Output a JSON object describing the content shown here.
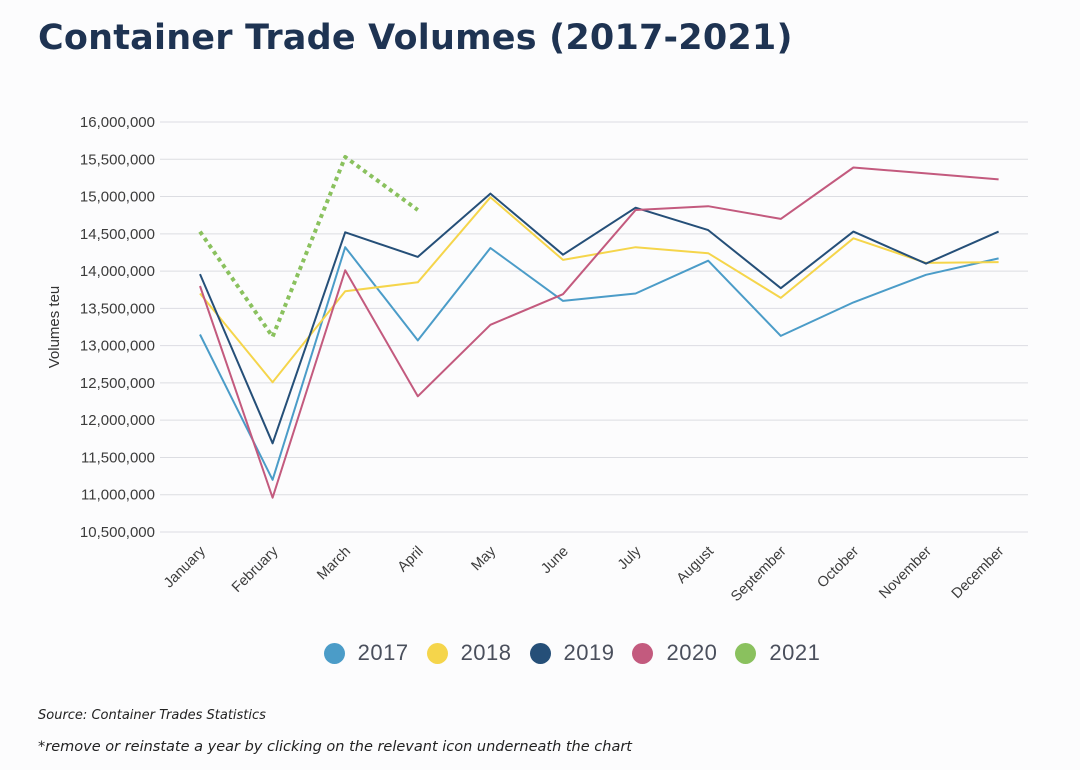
{
  "title": "Container Trade Volumes (2017-2021)",
  "source_note": "Source: Container Trades Statistics",
  "footnote": "*remove or reinstate a year by clicking on the relevant icon underneath the chart",
  "chart_data": {
    "type": "line",
    "ylabel": "Volumes teu",
    "ylim": [
      10500000,
      16000000
    ],
    "yticks": [
      10500000,
      11000000,
      11500000,
      12000000,
      12500000,
      13000000,
      13500000,
      14000000,
      14500000,
      15000000,
      15500000,
      16000000
    ],
    "ytick_labels": [
      "10,500,000",
      "11,000,000",
      "11,500,000",
      "12,000,000",
      "12,500,000",
      "13,000,000",
      "13,500,000",
      "14,000,000",
      "14,500,000",
      "15,000,000",
      "15,500,000",
      "16,000,000"
    ],
    "categories": [
      "January",
      "February",
      "March",
      "April",
      "May",
      "June",
      "July",
      "August",
      "September",
      "October",
      "November",
      "December"
    ],
    "grid": true,
    "legend_position": "bottom",
    "series": [
      {
        "name": "2017",
        "color": "#4b9cc8",
        "dashed": false,
        "values": [
          13150000,
          11200000,
          14320000,
          13070000,
          14310000,
          13600000,
          13700000,
          14140000,
          13130000,
          13580000,
          13950000,
          14170000
        ]
      },
      {
        "name": "2018",
        "color": "#f5d54b",
        "dashed": false,
        "values": [
          13700000,
          12510000,
          13730000,
          13850000,
          14990000,
          14150000,
          14320000,
          14240000,
          13640000,
          14440000,
          14110000,
          14120000
        ]
      },
      {
        "name": "2019",
        "color": "#254f78",
        "dashed": false,
        "values": [
          13960000,
          11690000,
          14520000,
          14190000,
          15040000,
          14220000,
          14850000,
          14550000,
          13770000,
          14530000,
          14100000,
          14530000
        ]
      },
      {
        "name": "2020",
        "color": "#c35a7e",
        "dashed": false,
        "values": [
          13800000,
          10960000,
          14010000,
          12320000,
          13280000,
          13690000,
          14820000,
          14870000,
          14700000,
          15390000,
          15310000,
          15230000
        ]
      },
      {
        "name": "2021",
        "color": "#8ac15e",
        "dashed": true,
        "values": [
          14530000,
          13120000,
          15530000,
          14820000,
          null,
          null,
          null,
          null,
          null,
          null,
          null,
          null
        ]
      }
    ]
  }
}
